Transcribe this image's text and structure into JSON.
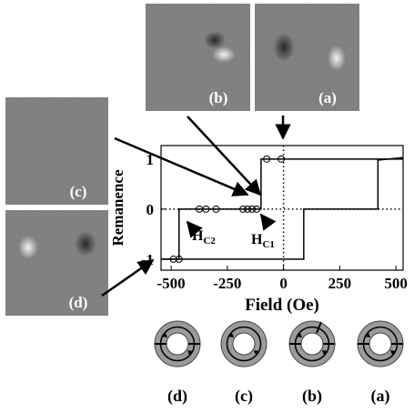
{
  "chart_data": {
    "type": "line",
    "xlabel": "Field (Oe)",
    "ylabel": "Remanence",
    "xlim": [
      -545,
      532
    ],
    "ylim": [
      -1.22,
      1.27
    ],
    "xticks": [
      -500,
      -250,
      0,
      250,
      500
    ],
    "yticks": [
      -1,
      0,
      1
    ],
    "series": [
      {
        "color": "#000000",
        "x": [
          -545,
          -465,
          -465,
          -100,
          -100,
          532
        ],
        "values": [
          -1,
          -1,
          0,
          0,
          1,
          1
        ]
      },
      {
        "color": "#000000",
        "x": [
          532,
          420,
          420,
          90,
          90,
          -545
        ],
        "values": [
          1.03,
          0.98,
          0,
          0,
          -1,
          -1
        ]
      }
    ],
    "points": {
      "marker": "circle",
      "x": [
        -490,
        -465,
        -375,
        -345,
        -300,
        -180,
        -160,
        -140,
        -120,
        -75,
        -10
      ],
      "values": [
        -1,
        -1,
        0,
        0,
        0,
        0,
        0,
        0,
        0,
        1,
        1
      ]
    },
    "annotations": [
      {
        "text": "H",
        "sub": "C2"
      },
      {
        "text": "H",
        "sub": "C1"
      }
    ],
    "images": [
      "(b)",
      "(a)",
      "(c)",
      "(d)"
    ],
    "rings": [
      "(d)",
      "(c)",
      "(b)",
      "(a)"
    ]
  }
}
